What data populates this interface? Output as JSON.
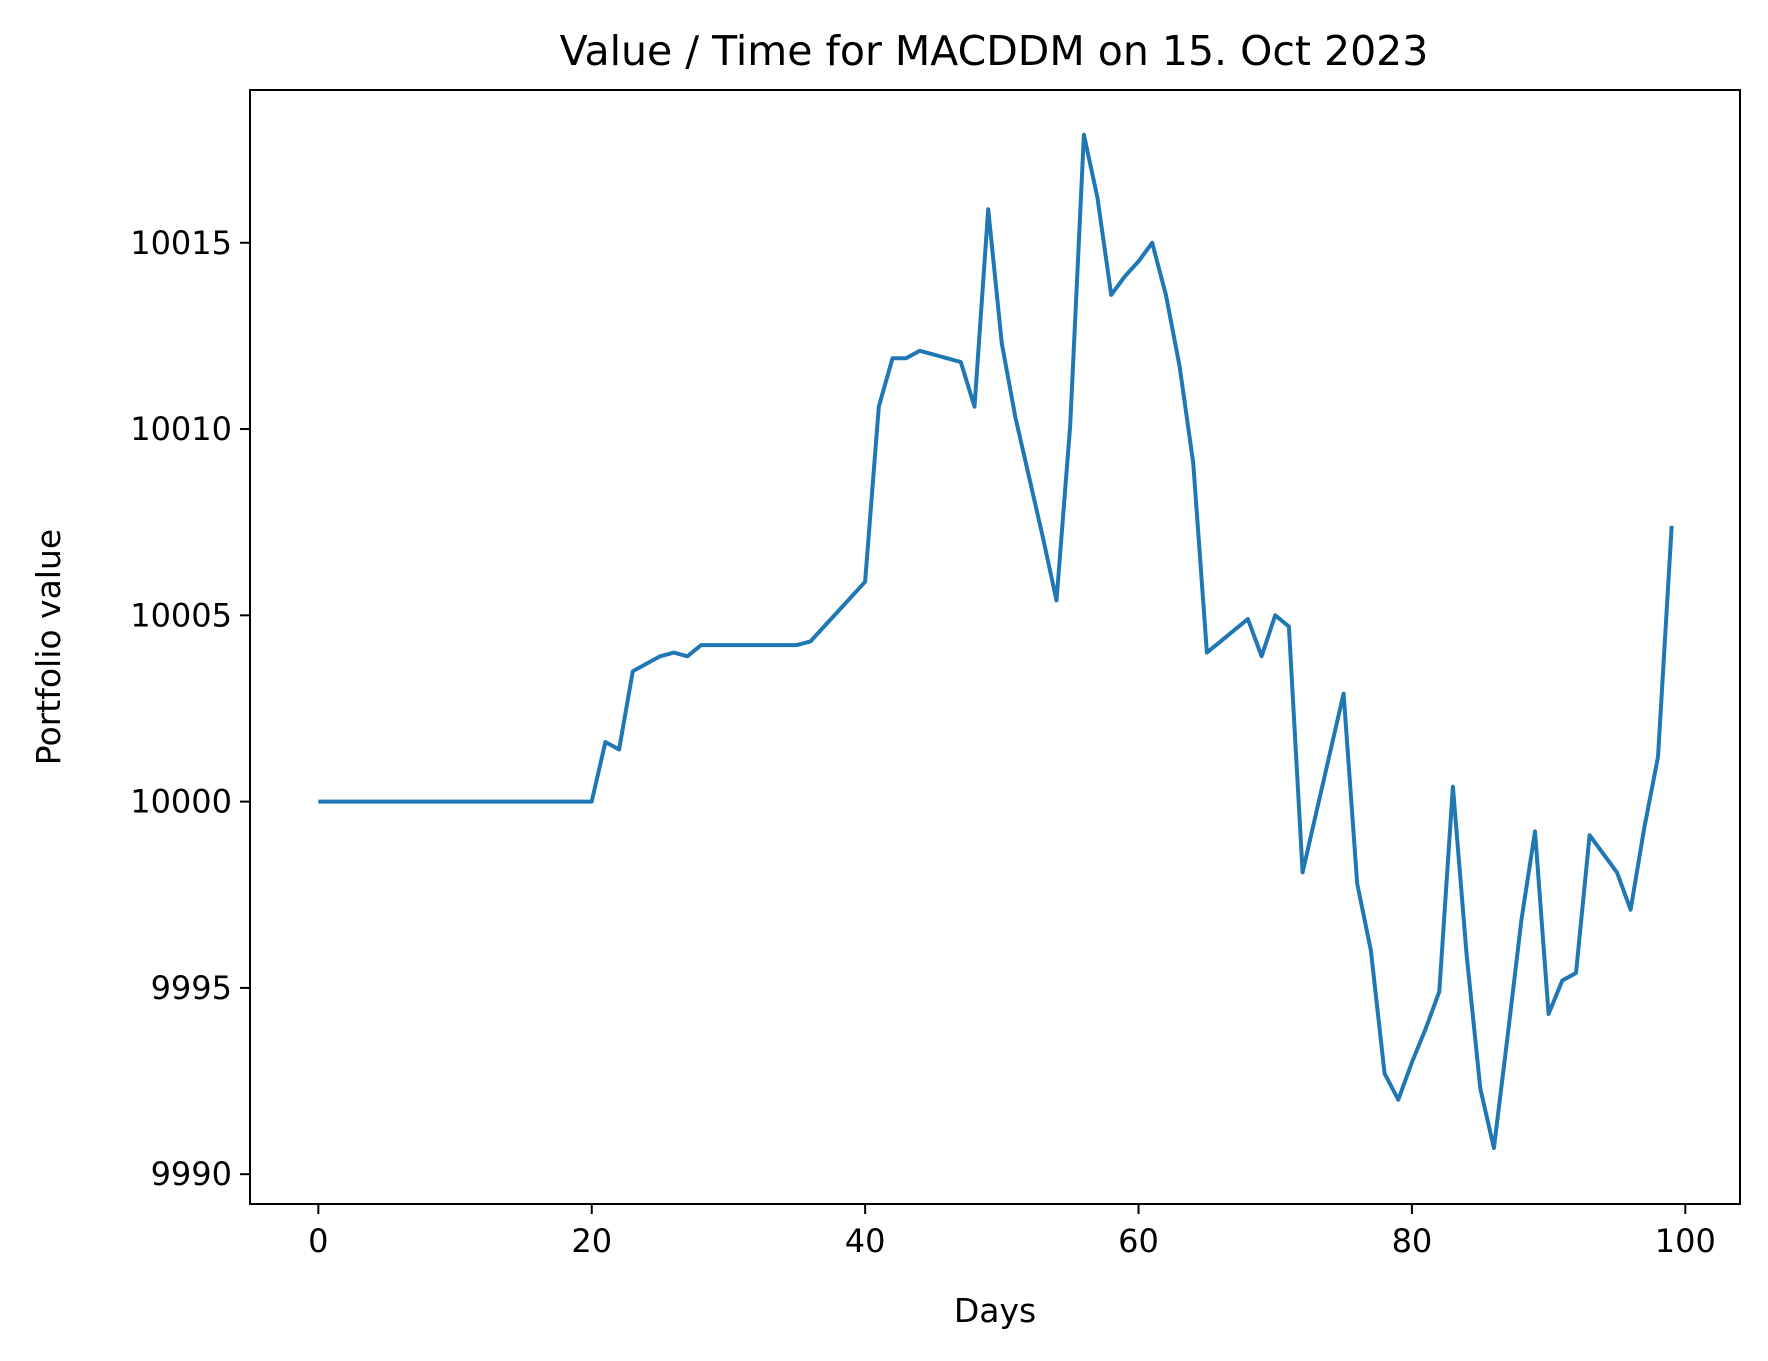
{
  "chart_data": {
    "type": "line",
    "title": "Value / Time for MACDDM on 15. Oct 2023",
    "xlabel": "Days",
    "ylabel": "Portfolio value",
    "xlim": [
      -5,
      104
    ],
    "ylim": [
      9989.2,
      10019.1
    ],
    "xticks": [
      0,
      20,
      40,
      60,
      80,
      100
    ],
    "xtick_labels": [
      "0",
      "20",
      "40",
      "60",
      "80",
      "100"
    ],
    "yticks": [
      9990,
      9995,
      10000,
      10005,
      10010,
      10015
    ],
    "ytick_labels": [
      "9990",
      "9995",
      "10000",
      "10005",
      "10010",
      "10015"
    ],
    "grid": false,
    "legend": "none",
    "line_color": "#1f77b4",
    "series": [
      {
        "x": [
          0,
          1,
          2,
          3,
          4,
          5,
          6,
          7,
          8,
          9,
          10,
          11,
          12,
          13,
          14,
          15,
          16,
          17,
          18,
          19,
          20,
          21,
          22,
          23,
          24,
          25,
          26,
          27,
          28,
          29,
          30,
          31,
          32,
          33,
          34,
          35,
          36,
          37,
          38,
          39,
          40,
          41,
          42,
          43,
          44,
          45,
          46,
          47,
          48,
          49,
          50,
          51,
          52,
          53,
          54,
          55,
          56,
          57,
          58,
          59,
          60,
          61,
          62,
          63,
          64,
          65,
          66,
          67,
          68,
          69,
          70,
          71,
          72,
          73,
          74,
          75,
          76,
          77,
          78,
          79,
          80,
          81,
          82,
          83,
          84,
          85,
          86,
          87,
          88,
          89,
          90,
          91,
          92,
          93,
          94,
          95,
          96,
          97,
          98,
          99
        ],
        "y": [
          10000,
          10000,
          10000,
          10000,
          10000,
          10000,
          10000,
          10000,
          10000,
          10000,
          10000,
          10000,
          10000,
          10000,
          10000,
          10000,
          10000,
          10000,
          10000,
          10000,
          10000,
          10001.6,
          10001.4,
          10003.5,
          10003.7,
          10003.9,
          10004.0,
          10003.9,
          10004.2,
          10004.2,
          10004.2,
          10004.2,
          10004.2,
          10004.2,
          10004.2,
          10004.2,
          10004.3,
          10004.7,
          10005.1,
          10005.5,
          10005.9,
          10010.6,
          10011.9,
          10011.9,
          10012.1,
          10012.0,
          10011.9,
          10011.8,
          10010.6,
          10015.9,
          10012.3,
          10010.3,
          10008.7,
          10007.1,
          10005.4,
          10010.1,
          10017.9,
          10016.2,
          10013.6,
          10014.1,
          10014.5,
          10015.0,
          10013.6,
          10011.7,
          10009.1,
          10004.0,
          10004.3,
          10004.6,
          10004.9,
          10003.9,
          10005.0,
          10004.7,
          9998.1,
          9999.7,
          10001.3,
          10002.9,
          9997.8,
          9996.0,
          9992.7,
          9992.0,
          9993.0,
          9993.9,
          9994.9,
          10000.4,
          9995.9,
          9992.3,
          9990.7,
          9993.7,
          9996.8,
          9999.2,
          9994.3,
          9995.2,
          9995.4,
          9999.1,
          9998.6,
          9998.1,
          9997.1,
          9999.3,
          10001.2,
          10007.4
        ]
      }
    ]
  }
}
